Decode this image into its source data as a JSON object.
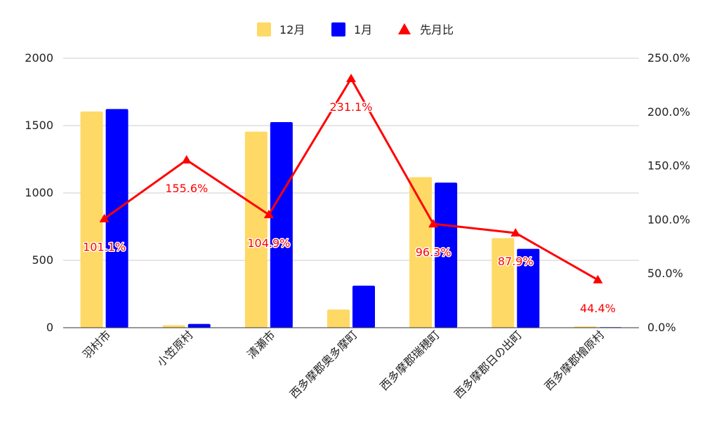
{
  "chart_data": {
    "type": "bar",
    "title": "",
    "categories": [
      "羽村市",
      "小笠原村",
      "清瀬市",
      "西多摩郡奥多摩町",
      "西多摩郡瑞穂町",
      "西多摩郡日の出町",
      "西多摩郡檜原村"
    ],
    "series": [
      {
        "name": "12月",
        "type": "bar",
        "axis": "left",
        "color": "#FFD966",
        "values": [
          1605,
          18,
          1455,
          135,
          1118,
          665,
          9
        ]
      },
      {
        "name": "1月",
        "type": "bar",
        "axis": "left",
        "color": "#0000FF",
        "values": [
          1623,
          28,
          1526,
          312,
          1077,
          585,
          4
        ]
      },
      {
        "name": "先月比",
        "type": "line",
        "axis": "right",
        "color": "#FF0000",
        "marker": "triangle",
        "values": [
          101.1,
          155.6,
          104.9,
          231.1,
          96.3,
          87.9,
          44.4
        ],
        "labels": [
          "101.1%",
          "155.6%",
          "104.9%",
          "231.1%",
          "96.3%",
          "87.9%",
          "44.4%"
        ]
      }
    ],
    "y_left": {
      "min": 0,
      "max": 2000,
      "ticks": [
        "0",
        "500",
        "1000",
        "1500",
        "2000"
      ]
    },
    "y_right": {
      "min": 0,
      "max": 250,
      "ticks": [
        "0.0%",
        "50.0%",
        "100.0%",
        "150.0%",
        "200.0%",
        "250.0%"
      ]
    },
    "grid": true,
    "legend_position": "top"
  }
}
